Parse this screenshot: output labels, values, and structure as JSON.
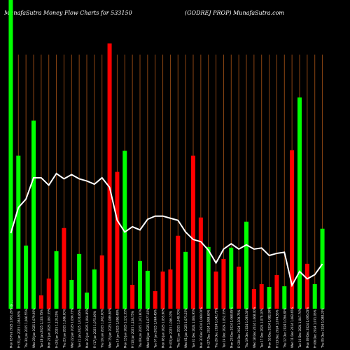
{
  "header": {
    "left_title": "MunafaSutra  Money Flow  Charts for 533150",
    "right_title": "(GODREJ PROP) MunafaSutra.com"
  },
  "colors": {
    "background": "#000000",
    "up_bar": "#00ff00",
    "down_bar": "#ff0000",
    "gridline": "#8b4513",
    "price_line": "#ffffff"
  },
  "chart_data": {
    "type": "bar",
    "title": "MunafaSutra  Money Flow  Charts for 533150",
    "subtitle": "(GODREJ PROP) MunafaSutra.com",
    "categories": [
      "Mon 03 Feb 2025 1,061.26% @ ...",
      "Fri 31 Jan 2025 1,084.90%",
      "Thu 30 Jan 2025 1,066.55%",
      "Wed 29 Jan 2025 1,079.95%",
      "Tue 28 Jan 2025 1,103.75%",
      "Mon 27 Jan 2025 1,067.55%",
      "Fri 24 Jan 2025 1,119.25%",
      "Thu 23 Jan 2025 1,086.00%",
      "Wed 22 Jan 2025 1,056.75%",
      "Tue 21 Jan 2025 1,074.85%",
      "Mon 20 Jan 2025 1,064.85%",
      "Fri 17 Jan 2025 1,075.00%",
      "Thu 16 Jan 2025 1,062.00%",
      "Wed 15 Jan 2025 1,089.80%",
      "Tue 14 Jan 2025 1,096.40%",
      "Mon 13 Jan 2025 1,132.55%",
      "Fri 10 Jan 2025 1,128.75%",
      "Thu 09 Jan 2025 1,101.60%",
      "Wed 08 Jan 2025 1,077.65%",
      "Tue 07 Jan 2025 1,064.45%",
      "Mon 06 Jan 2025 1,055.90%",
      "Fri 03 Jan 2025 1,046.10%",
      "Thu 02 Jan 2025 1,049.70%",
      "Wed 01 Jan 2025 1,073.25%",
      "Tue 31 Dec 2024 1,084.95%",
      "Mon 30 Dec 2024 1,064.00%",
      "Fri 27 Dec 2024 1,069.60%",
      "Thu 26 Dec 2024 1,042.75%",
      "Tue 24 Dec 2024 1,052.35%",
      "Mon 23 Dec 2024 1,068.85%",
      "Fri 20 Dec 2024 1,109.75%",
      "Thu 19 Dec 2024 1,093.50%",
      "Wed 18 Dec 2024 1,068.40%",
      "Tue 17 Dec 2024 1,079.10%",
      "Mon 16 Dec 2024 1,082.90%",
      "Fri 13 Dec 2024 1,074.55%",
      "Thu 12 Dec 2024 1,056.80%",
      "Wed 11 Dec 2024 1,082.65%",
      "Tue 10 Dec 2024 1,047.70%",
      "Mon 09 Dec 2024 1,095.05%",
      "Fri 06 Dec 2024 1,071.05%",
      "Thu 05 Dec 2024 1,088.20%"
    ],
    "series": [
      {
        "name": "Money Flow",
        "values": [
          440,
          218,
          90,
          268,
          19,
          43,
          82,
          115,
          41,
          78,
          23,
          56,
          76,
          378,
          195,
          225,
          34,
          68,
          54,
          25,
          53,
          56,
          104,
          81,
          218,
          130,
          88,
          53,
          71,
          87,
          60,
          124,
          28,
          35,
          31,
          48,
          32,
          226,
          301,
          64,
          35,
          114
        ],
        "directions": [
          "up",
          "up",
          "up",
          "up",
          "down",
          "down",
          "up",
          "down",
          "up",
          "up",
          "up",
          "up",
          "down",
          "down",
          "down",
          "up",
          "down",
          "up",
          "up",
          "down",
          "down",
          "down",
          "down",
          "up",
          "down",
          "down",
          "up",
          "down",
          "down",
          "up",
          "down",
          "up",
          "down",
          "down",
          "up",
          "down",
          "up",
          "down",
          "up",
          "down",
          "up",
          "up"
        ]
      },
      {
        "name": "Price",
        "values": [
          1061,
          1085,
          1093,
          1113,
          1113,
          1106,
          1117,
          1112,
          1116,
          1112,
          1110,
          1107,
          1113,
          1104,
          1073,
          1062,
          1067,
          1064,
          1074,
          1077,
          1077,
          1075,
          1073,
          1062,
          1055,
          1053,
          1045,
          1033,
          1046,
          1051,
          1046,
          1050,
          1046,
          1047,
          1040,
          1042,
          1043,
          1012,
          1025,
          1018,
          1022,
          1032
        ]
      }
    ],
    "ylim": [
      0,
      440
    ],
    "price_range": [
      990,
      1280
    ],
    "grid": true
  }
}
